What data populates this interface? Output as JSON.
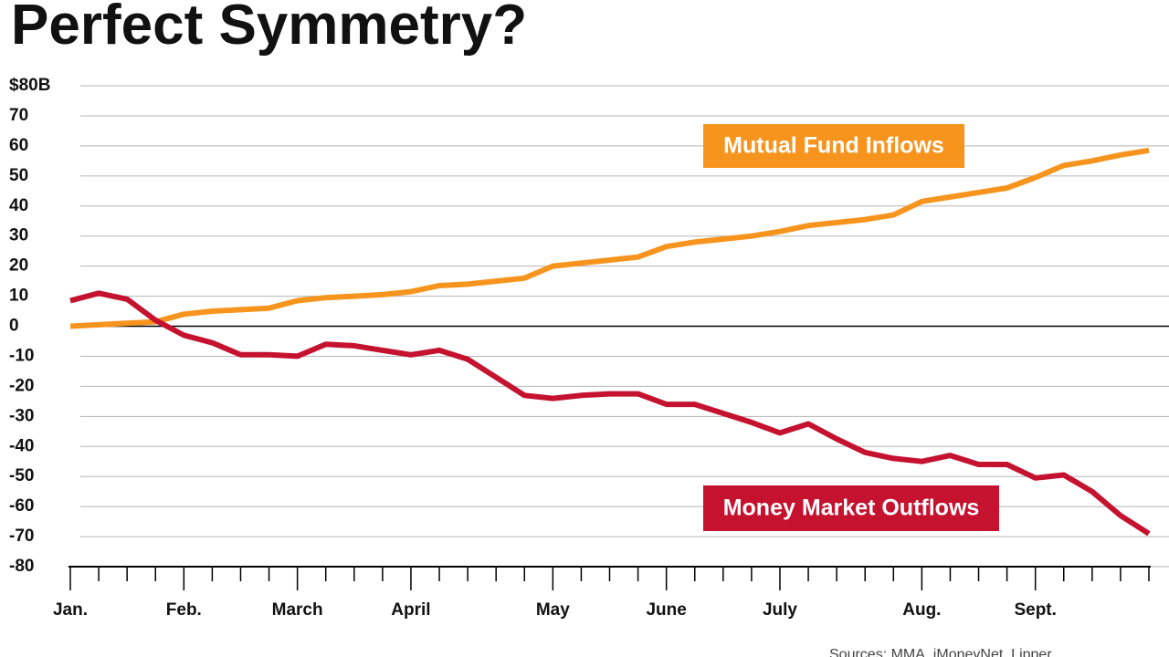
{
  "chart_data": {
    "type": "line",
    "title": "Perfect Symmetry?",
    "source": "Sources: MMA, iMoneyNet, Lipper",
    "categories": [
      "Jan.",
      null,
      null,
      null,
      "Feb.",
      null,
      null,
      null,
      "March",
      null,
      null,
      null,
      "April",
      null,
      null,
      null,
      null,
      "May",
      null,
      null,
      null,
      "June",
      null,
      null,
      null,
      "July",
      null,
      null,
      null,
      null,
      "Aug.",
      null,
      null,
      null,
      "Sept.",
      null,
      null,
      null,
      null
    ],
    "series": [
      {
        "name": "Mutual Fund Inflows",
        "color": "#f7941d",
        "values": [
          0,
          0.5,
          1,
          1.5,
          4,
          5,
          5.5,
          6,
          8.5,
          9.5,
          10,
          10.5,
          11.5,
          13.5,
          14,
          15,
          16,
          20,
          21,
          22,
          23,
          26.5,
          28,
          29,
          30,
          31.5,
          33.5,
          34.5,
          35.5,
          37,
          41.5,
          43,
          44.5,
          46,
          49.5,
          53.5,
          55,
          57,
          58.5
        ]
      },
      {
        "name": "Money Market Outflows",
        "color": "#c4122f",
        "values": [
          8.5,
          11,
          9,
          2,
          -3,
          -5.5,
          -9.5,
          -9.5,
          -10,
          -6,
          -6.5,
          -8,
          -9.5,
          -8,
          -11,
          -17,
          -23,
          -24,
          -23,
          -22.5,
          -22.5,
          -26,
          -26,
          -29,
          -32,
          -35.5,
          -32.5,
          -37.5,
          -42,
          -44,
          -45,
          -43,
          -46,
          -46,
          -50.5,
          -49.5,
          -55,
          -63,
          -69
        ]
      }
    ],
    "ylim": [
      -80,
      80
    ],
    "yticks": [
      {
        "value": 80,
        "label": "$80B"
      },
      70,
      60,
      50,
      40,
      30,
      20,
      10,
      0,
      -10,
      -20,
      -30,
      -40,
      -50,
      -60,
      -70,
      -80
    ],
    "grid": true
  }
}
